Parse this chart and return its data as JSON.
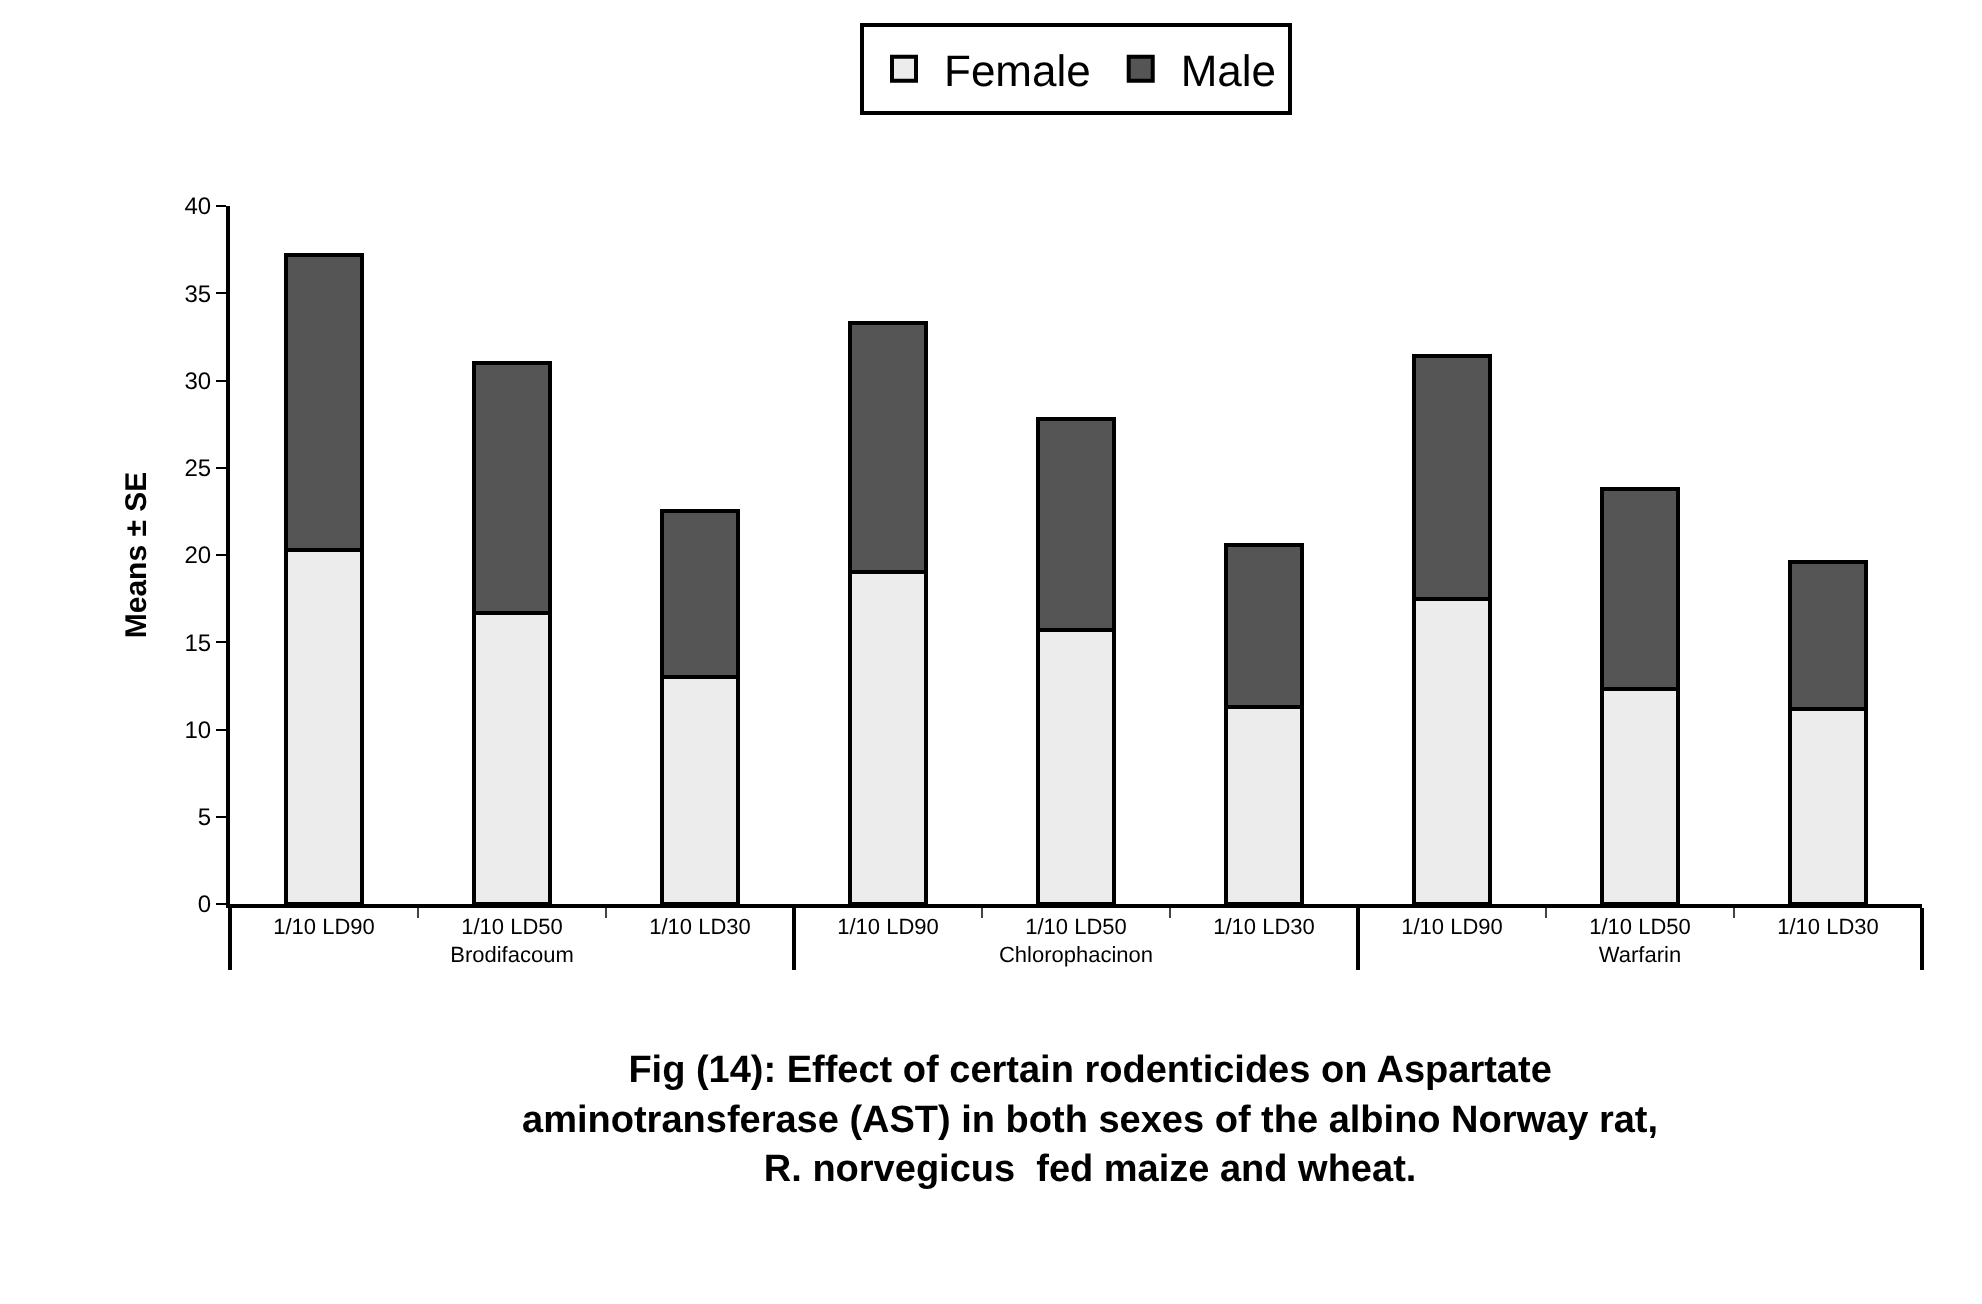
{
  "chart_data": {
    "type": "bar",
    "title": "Fig (14): Effect of certain rodenticides on Aspartate aminotransferase (AST) in both sexes of the albino Norway rat, R. norvegicus  fed maize and wheat.",
    "ylabel": "Means ± SE",
    "categories": [
      "1/10 LD90",
      "1/10 LD50",
      "1/10 LD30",
      "1/10 LD90",
      "1/10 LD50",
      "1/10 LD30",
      "1/10 LD90",
      "1/10 LD50",
      "1/10 LD30"
    ],
    "annotations": [
      "Brodifacoum",
      "Chlorophacinon",
      "Warfarin"
    ],
    "stacked": true,
    "series": [
      {
        "name": "Female",
        "color": "#ececec",
        "values": [
          20.3,
          16.7,
          13.0,
          19.0,
          15.7,
          11.3,
          17.5,
          12.3,
          11.2
        ]
      },
      {
        "name": "Male",
        "color": "#555555",
        "values": [
          16.9,
          14.3,
          9.5,
          14.3,
          12.1,
          9.3,
          13.9,
          11.5,
          8.4
        ]
      }
    ],
    "ylim": [
      0,
      40
    ],
    "yticks": [
      0,
      5,
      10,
      15,
      20,
      25,
      30,
      35,
      40
    ],
    "legend": "top"
  }
}
